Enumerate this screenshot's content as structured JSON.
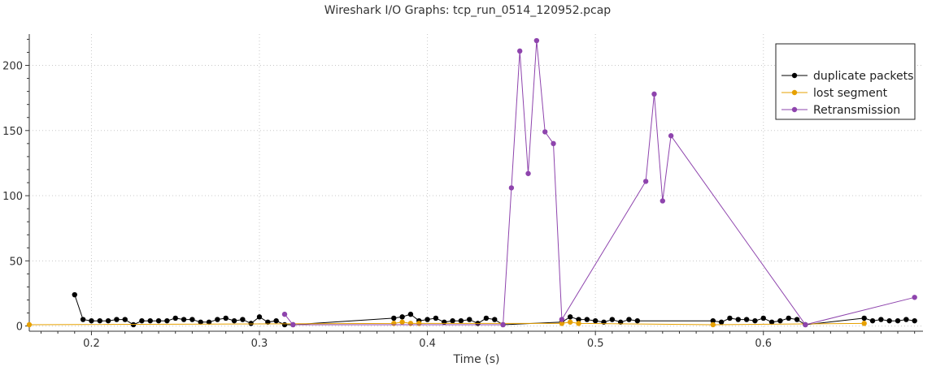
{
  "chart_data": {
    "type": "line",
    "title": "Wireshark I/O Graphs: tcp_run_0514_120952.pcap",
    "xlabel": "Time (s)",
    "ylabel": "",
    "xlim": [
      0.163,
      0.695
    ],
    "ylim": [
      -4,
      224
    ],
    "xticks": [
      0.2,
      0.3,
      0.4,
      0.5,
      0.6
    ],
    "yticks": [
      0,
      50,
      100,
      150,
      200
    ],
    "grid": true,
    "legend_position": "top-right",
    "series": [
      {
        "name": "duplicate packets",
        "color": "#000000",
        "x": [
          0.19,
          0.195,
          0.2,
          0.205,
          0.21,
          0.215,
          0.22,
          0.225,
          0.23,
          0.235,
          0.24,
          0.245,
          0.25,
          0.255,
          0.26,
          0.265,
          0.27,
          0.275,
          0.28,
          0.285,
          0.29,
          0.295,
          0.3,
          0.305,
          0.31,
          0.315,
          0.32,
          0.38,
          0.385,
          0.39,
          0.395,
          0.4,
          0.405,
          0.41,
          0.415,
          0.42,
          0.425,
          0.43,
          0.435,
          0.44,
          0.445,
          0.48,
          0.485,
          0.49,
          0.495,
          0.5,
          0.505,
          0.51,
          0.515,
          0.52,
          0.525,
          0.57,
          0.575,
          0.58,
          0.585,
          0.59,
          0.595,
          0.6,
          0.605,
          0.61,
          0.615,
          0.62,
          0.625,
          0.66,
          0.665,
          0.67,
          0.675,
          0.68,
          0.685,
          0.69
        ],
        "values": [
          24,
          5,
          4,
          4,
          4,
          5,
          5,
          1,
          4,
          4,
          4,
          4,
          6,
          5,
          5,
          3,
          3,
          5,
          6,
          4,
          5,
          2,
          7,
          3,
          4,
          1,
          1,
          6,
          7,
          9,
          4,
          5,
          6,
          3,
          4,
          4,
          5,
          2,
          6,
          5,
          1,
          3,
          7,
          5,
          5,
          4,
          3,
          5,
          3,
          5,
          4,
          4,
          3,
          6,
          5,
          5,
          4,
          6,
          3,
          4,
          6,
          5,
          1,
          6,
          4,
          5,
          4,
          4,
          5,
          4
        ]
      },
      {
        "name": "lost segment",
        "color": "#e6a000",
        "x": [
          0.163,
          0.38,
          0.385,
          0.39,
          0.395,
          0.48,
          0.485,
          0.49,
          0.57,
          0.66
        ],
        "values": [
          1,
          2,
          3,
          2,
          2,
          2,
          3,
          2,
          1,
          2
        ]
      },
      {
        "name": "Retransmission",
        "color": "#8e44ad",
        "x": [
          0.315,
          0.32,
          0.445,
          0.45,
          0.455,
          0.46,
          0.465,
          0.47,
          0.475,
          0.48,
          0.53,
          0.535,
          0.54,
          0.545,
          0.625,
          0.69
        ],
        "values": [
          9,
          1,
          1,
          106,
          211,
          117,
          219,
          149,
          140,
          5,
          111,
          178,
          96,
          146,
          1,
          22
        ]
      }
    ]
  }
}
